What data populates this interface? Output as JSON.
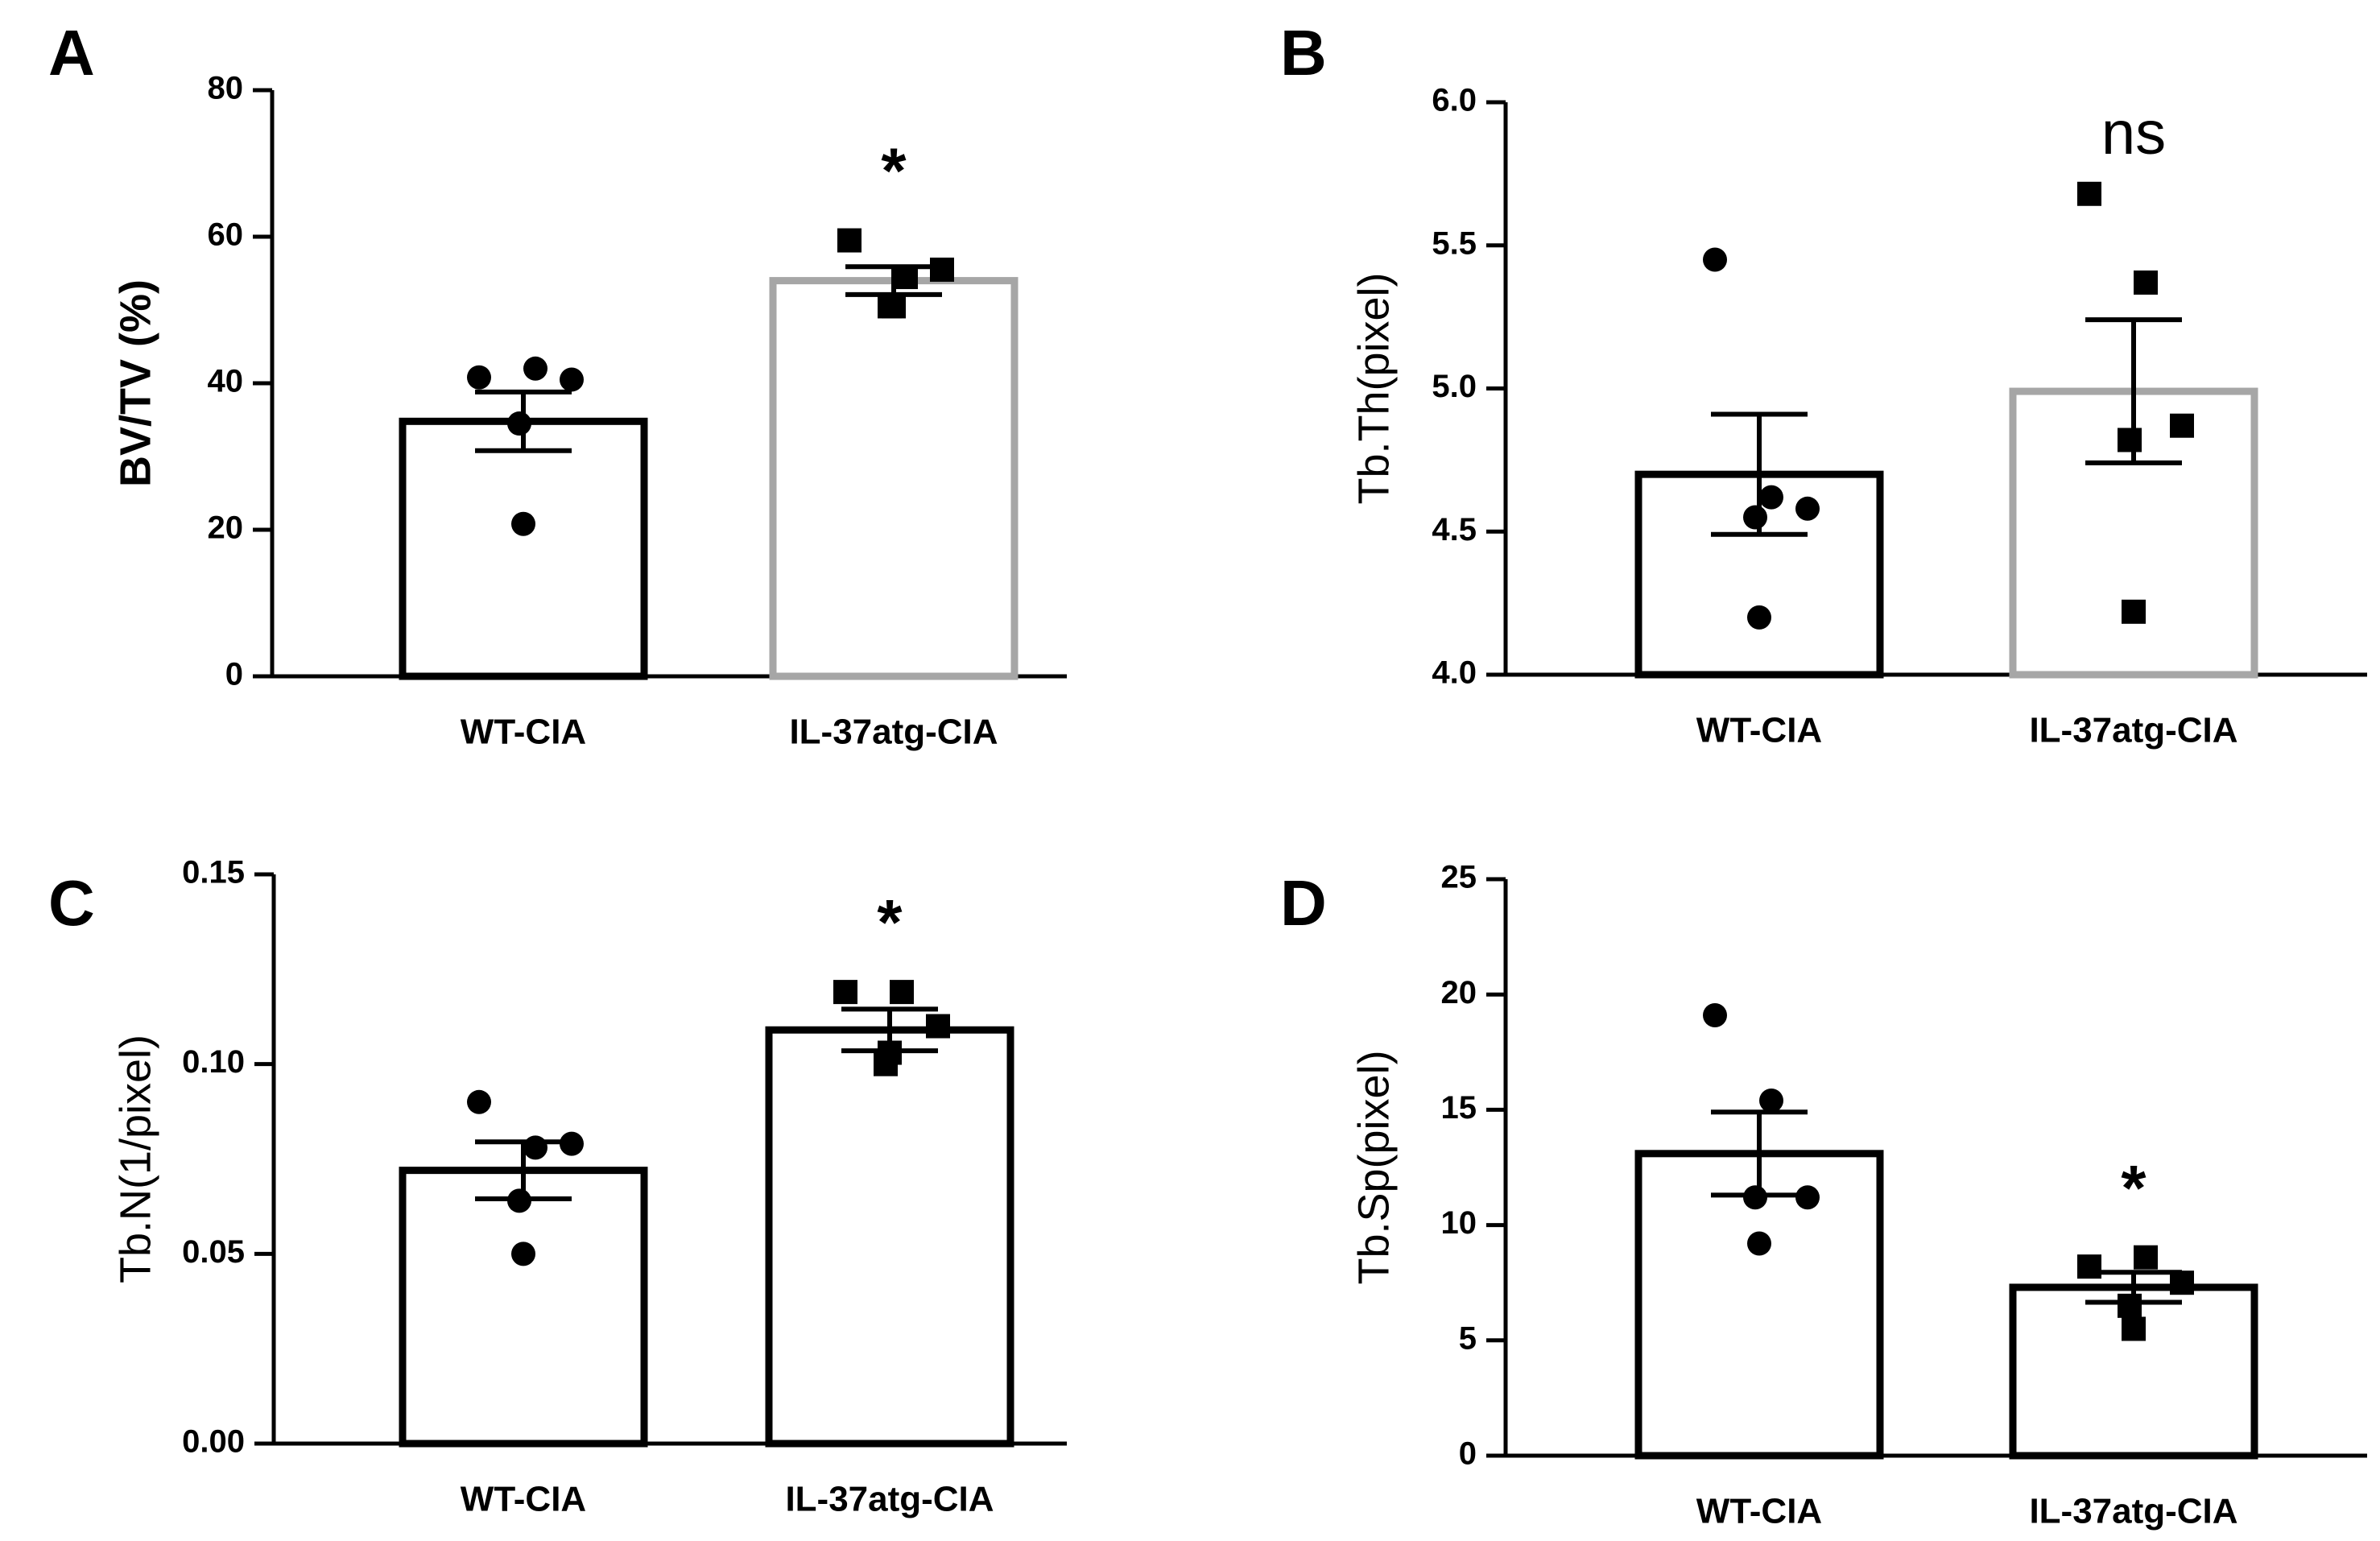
{
  "colors": {
    "axis": "#000000",
    "wt_bar": "#000000",
    "il37_bar_grey": "#a6a6a6",
    "il37_bar_black": "#000000",
    "background": "#ffffff"
  },
  "chart_data": [
    {
      "panel": "A",
      "type": "bar",
      "ylabel": "BV/TV (%)",
      "ylabel_bold": true,
      "ylim": [
        0,
        80
      ],
      "yticks": [
        "0",
        "20",
        "40",
        "60",
        "80"
      ],
      "categories": [
        "WT-CIA",
        "IL-37atg-CIA"
      ],
      "bar_colors": [
        "#000000",
        "#a6a6a6"
      ],
      "means": [
        34.8,
        54.0
      ],
      "sem": [
        4.0,
        1.9
      ],
      "points": [
        [
          40.8,
          42.0,
          40.5,
          34.5,
          20.8
        ],
        [
          59.5,
          54.5,
          55.5,
          50.5,
          50.5
        ]
      ],
      "markers": [
        "circle",
        "square"
      ],
      "significance": [
        "",
        "*"
      ]
    },
    {
      "panel": "B",
      "type": "bar",
      "ylabel": "Tb.Th(pixel)",
      "ylabel_bold": false,
      "ylim": [
        4.0,
        6.0
      ],
      "yticks": [
        "4.0",
        "4.5",
        "5.0",
        "5.5",
        "6.0"
      ],
      "categories": [
        "WT-CIA",
        "IL-37atg-CIA"
      ],
      "bar_colors": [
        "#000000",
        "#a6a6a6"
      ],
      "means": [
        4.7,
        4.99
      ],
      "sem": [
        0.21,
        0.25
      ],
      "points": [
        [
          5.45,
          4.62,
          4.58,
          4.55,
          4.2
        ],
        [
          5.68,
          5.37,
          4.87,
          4.82,
          4.22
        ]
      ],
      "markers": [
        "circle",
        "square"
      ],
      "significance": [
        "",
        "ns"
      ]
    },
    {
      "panel": "C",
      "type": "bar",
      "ylabel": "Tb.N(1/pixel)",
      "ylabel_bold": false,
      "ylim": [
        0.0,
        0.15
      ],
      "yticks": [
        "0.00",
        "0.05",
        "0.10",
        "0.15"
      ],
      "categories": [
        "WT-CIA",
        "IL-37atg-CIA"
      ],
      "bar_colors": [
        "#000000",
        "#000000"
      ],
      "means": [
        0.072,
        0.109
      ],
      "sem": [
        0.0075,
        0.0055
      ],
      "points": [
        [
          0.09,
          0.078,
          0.079,
          0.064,
          0.05
        ],
        [
          0.119,
          0.119,
          0.11,
          0.1,
          0.103
        ]
      ],
      "markers": [
        "circle",
        "square"
      ],
      "significance": [
        "",
        "*"
      ]
    },
    {
      "panel": "D",
      "type": "bar",
      "ylabel": "Tb.Sp(pixel)",
      "ylabel_bold": false,
      "ylim": [
        0,
        25
      ],
      "yticks": [
        "0",
        "5",
        "10",
        "15",
        "20",
        "25"
      ],
      "categories": [
        "WT-CIA",
        "IL-37atg-CIA"
      ],
      "bar_colors": [
        "#000000",
        "#000000"
      ],
      "means": [
        13.1,
        7.3
      ],
      "sem": [
        1.8,
        0.65
      ],
      "points": [
        [
          19.1,
          15.4,
          11.2,
          11.2,
          9.2
        ],
        [
          8.2,
          8.6,
          7.5,
          6.5,
          5.5
        ]
      ],
      "markers": [
        "circle",
        "square"
      ],
      "significance": [
        "",
        "*"
      ]
    }
  ]
}
